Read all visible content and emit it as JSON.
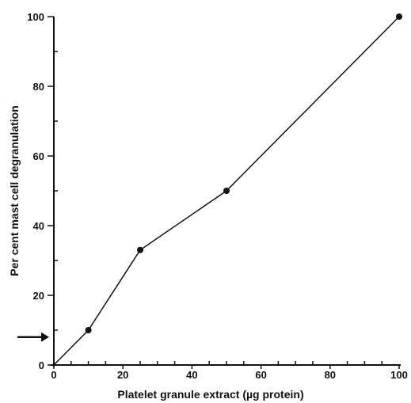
{
  "chart_data": {
    "type": "line",
    "title": "",
    "xlabel": "Platelet granule extract (µg protein)",
    "ylabel": "Per cent mast cell degranulation",
    "xlim": [
      0,
      100
    ],
    "ylim": [
      0,
      100
    ],
    "x_ticks": [
      0,
      20,
      40,
      60,
      80,
      100
    ],
    "y_ticks": [
      0,
      20,
      40,
      60,
      80,
      100
    ],
    "x_minor_step": 5,
    "y_minor_step": 10,
    "grid": false,
    "series": [
      {
        "x": [
          0,
          10,
          25,
          50,
          100
        ],
        "y": [
          0,
          10,
          33,
          50,
          100
        ],
        "markers_x": [
          10,
          25,
          50,
          100
        ],
        "markers_y": [
          10,
          33,
          50,
          100
        ]
      }
    ],
    "annotations": [
      {
        "type": "arrow",
        "text": "",
        "y": 8
      }
    ],
    "colors": {
      "ink": "#111111",
      "background": "#ffffff"
    }
  }
}
